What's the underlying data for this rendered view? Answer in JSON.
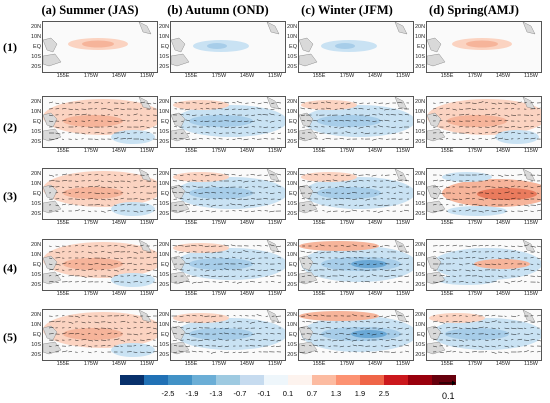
{
  "columns": [
    "(a) Summer (JAS)",
    "(b) Autumn (OND)",
    "(c) Winter (JFM)",
    "(d) Spring(AMJ)"
  ],
  "rows": [
    "(1)",
    "(2)",
    "(3)",
    "(4)",
    "(5)"
  ],
  "lat_labels": [
    "20N",
    "10N",
    "EQ",
    "10S",
    "20S"
  ],
  "lon_labels": [
    "155E",
    "175W",
    "145W",
    "115W"
  ],
  "colorbar": {
    "ticks": [
      "-2.5",
      "-1.9",
      "-1.3",
      "-0.7",
      "-0.1",
      "0.1",
      "0.7",
      "1.3",
      "1.9",
      "2.5"
    ],
    "colors": [
      "#08306b",
      "#2171b5",
      "#4292c6",
      "#6baed6",
      "#9ecae1",
      "#c6dbef",
      "#eef6fb",
      "#fdf3ee",
      "#fcbba1",
      "#fc9272",
      "#ef6548",
      "#cb181d",
      "#99000d",
      "#67000d"
    ]
  },
  "reference_vector": "0.1",
  "panels": [
    [
      "pos-weak",
      "neg-weak",
      "neg-weak",
      "pos-weak"
    ],
    [
      "pos",
      "neg",
      "neg",
      "pos"
    ],
    [
      "pos",
      "neg",
      "neg",
      "pos-strong"
    ],
    [
      "pos",
      "neg",
      "neg-strong",
      "mixed"
    ],
    [
      "pos",
      "neg",
      "neg-strong",
      "neg"
    ]
  ]
}
